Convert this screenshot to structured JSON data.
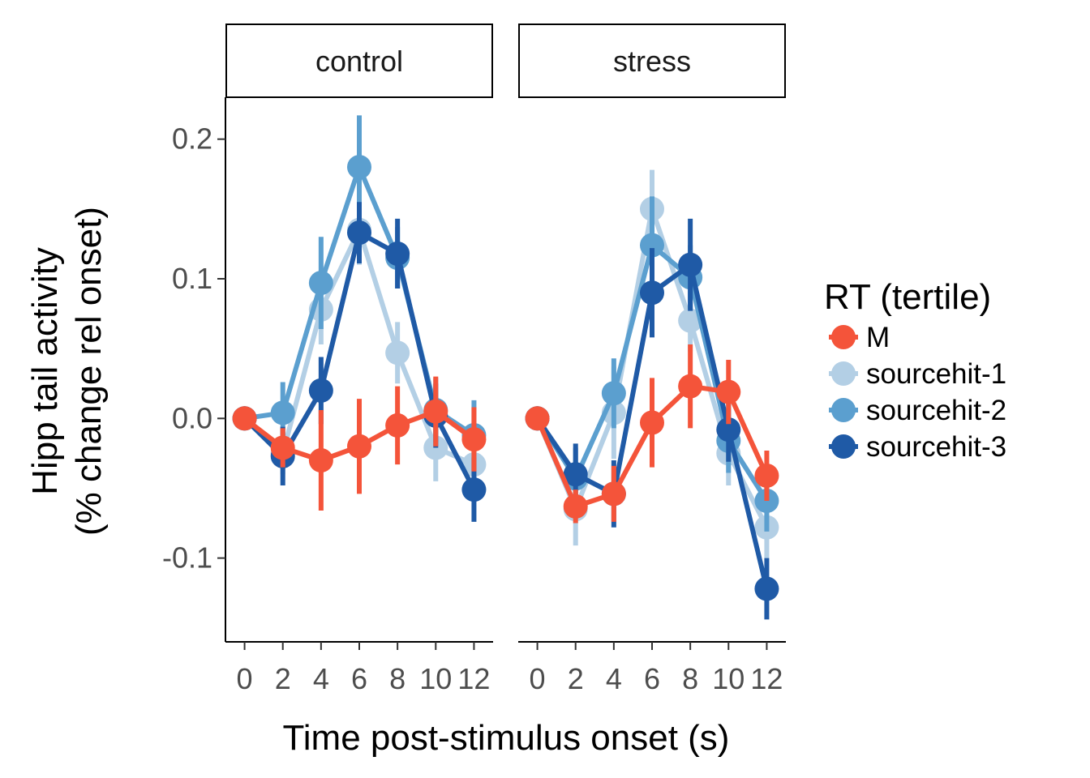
{
  "chart_data": {
    "type": "line",
    "title": "",
    "xlabel": "Time post-stimulus onset (s)",
    "ylabel_lines": [
      "Hipp tail activity",
      "(% change rel onset)"
    ],
    "x": [
      0,
      2,
      4,
      6,
      8,
      10,
      12
    ],
    "x_tick_labels": [
      "0",
      "2",
      "4",
      "6",
      "8",
      "10",
      "12"
    ],
    "y_ticks": [
      0.2,
      0.1,
      0.0,
      -0.1
    ],
    "y_tick_labels": [
      "0.2",
      "0.1",
      "0.0",
      "-0.1"
    ],
    "ylim": [
      -0.16,
      0.23
    ],
    "xlim": [
      -1,
      13
    ],
    "grid": false,
    "legend": {
      "title": "RT (tertile)",
      "position": "right",
      "entries": [
        "M",
        "sourcehit-1",
        "sourcehit-2",
        "sourcehit-3"
      ]
    },
    "colors": {
      "M": "#f4543a",
      "sourcehit-1": "#b3cfe5",
      "sourcehit-2": "#5b9fcf",
      "sourcehit-3": "#1f5aa6"
    },
    "panels": [
      {
        "label": "control",
        "series": [
          {
            "name": "sourcehit-1",
            "values": [
              0.0,
              -0.025,
              0.078,
              0.135,
              0.047,
              -0.021,
              -0.033
            ],
            "errors": [
              0.0,
              0.015,
              0.025,
              0.025,
              0.022,
              0.024,
              0.022
            ]
          },
          {
            "name": "sourcehit-2",
            "values": [
              0.0,
              0.004,
              0.097,
              0.18,
              0.115,
              0.006,
              -0.012
            ],
            "errors": [
              0.0,
              0.022,
              0.033,
              0.037,
              0.022,
              0.023,
              0.025
            ]
          },
          {
            "name": "sourcehit-3",
            "values": [
              0.0,
              -0.027,
              0.02,
              0.133,
              0.118,
              0.002,
              -0.051
            ],
            "errors": [
              0.0,
              0.021,
              0.024,
              0.022,
              0.025,
              0.023,
              0.023
            ]
          },
          {
            "name": "M",
            "values": [
              0.0,
              -0.021,
              -0.03,
              -0.02,
              -0.005,
              0.005,
              -0.015
            ],
            "errors": [
              0.0,
              0.014,
              0.036,
              0.034,
              0.028,
              0.025,
              0.023
            ]
          }
        ]
      },
      {
        "label": "stress",
        "series": [
          {
            "name": "sourcehit-1",
            "values": [
              0.0,
              -0.065,
              0.004,
              0.15,
              0.07,
              -0.025,
              -0.078
            ],
            "errors": [
              0.0,
              0.026,
              0.033,
              0.028,
              0.022,
              0.023,
              0.022
            ]
          },
          {
            "name": "sourcehit-2",
            "values": [
              0.0,
              -0.043,
              0.018,
              0.124,
              0.101,
              -0.016,
              -0.059
            ],
            "errors": [
              0.0,
              0.022,
              0.025,
              0.035,
              0.023,
              0.023,
              0.022
            ]
          },
          {
            "name": "sourcehit-3",
            "values": [
              0.0,
              -0.04,
              -0.054,
              0.09,
              0.11,
              -0.008,
              -0.122
            ],
            "errors": [
              0.0,
              0.022,
              0.024,
              0.032,
              0.033,
              0.023,
              0.022
            ]
          },
          {
            "name": "M",
            "values": [
              0.0,
              -0.063,
              -0.054,
              -0.003,
              0.023,
              0.019,
              -0.041
            ],
            "errors": [
              0.0,
              0.012,
              0.02,
              0.032,
              0.03,
              0.023,
              0.018
            ]
          }
        ]
      }
    ]
  }
}
